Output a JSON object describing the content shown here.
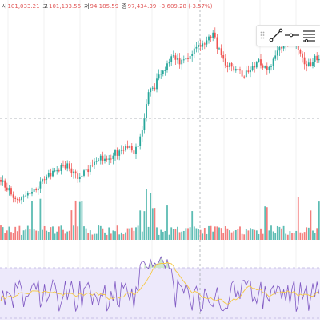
{
  "ohlc": {
    "open_label": "시",
    "open_value": "101,033.21",
    "high_label": "고",
    "high_value": "101,133.56",
    "low_label": "저",
    "low_value": "94,185.59",
    "close_label": "종",
    "close_value": "97,434.39",
    "change_value": "-3,609.28 (-3.57%)"
  },
  "toolbar": {
    "tools": [
      {
        "icon": "trend-line-icon"
      },
      {
        "icon": "horizontal-ray-icon"
      },
      {
        "icon": "fib-retracement-icon"
      }
    ]
  },
  "colors": {
    "up": "#26a69a",
    "down": "#ef5350",
    "crosshair": "#9aa0a6",
    "rsi_line": "#7e57c2",
    "rsi_ma": "#f5c842",
    "rsi_band": "#ede9fb",
    "rsi_overbought_fill": "#c8e6c9"
  }
}
